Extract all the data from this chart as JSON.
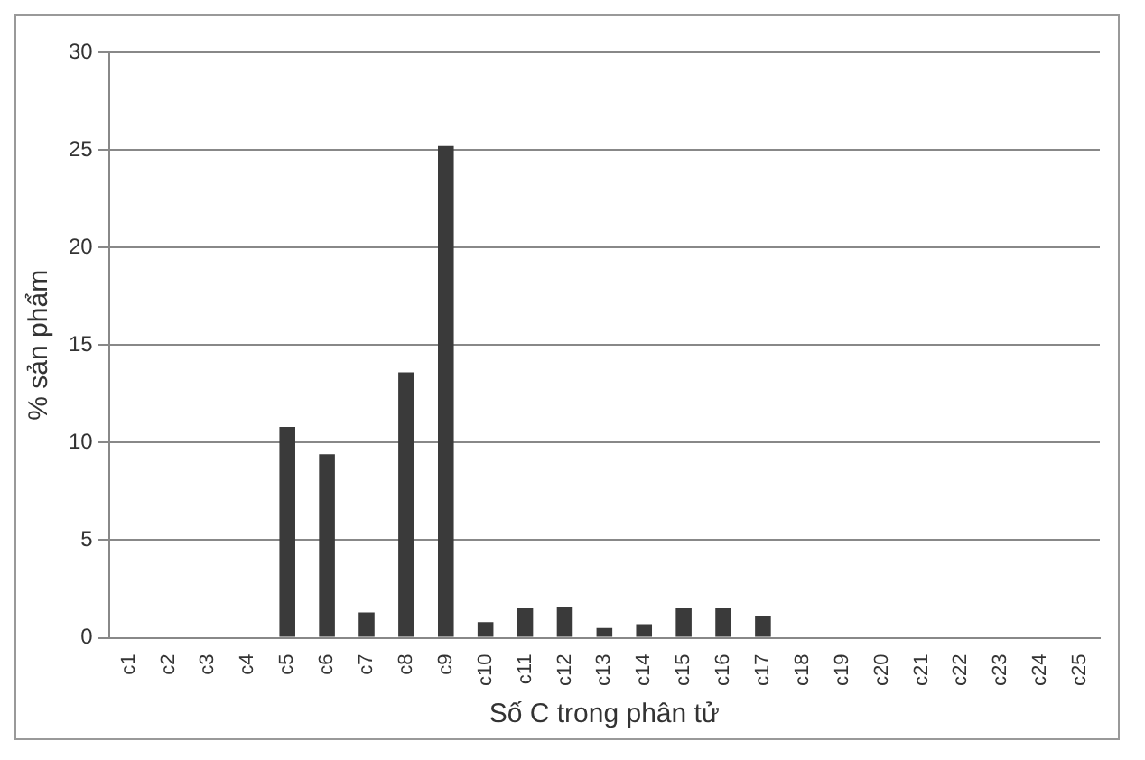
{
  "chart_data": {
    "type": "bar",
    "xlabel": "Số C trong phân tử",
    "ylabel": "% sản phẩm",
    "categories": [
      "c1",
      "c2",
      "c3",
      "c4",
      "c5",
      "c6",
      "c7",
      "c8",
      "c9",
      "c10",
      "c11",
      "c12",
      "c13",
      "c14",
      "c15",
      "c16",
      "c17",
      "c18",
      "c19",
      "c20",
      "c21",
      "c22",
      "c23",
      "c24",
      "c25"
    ],
    "values": [
      0,
      0,
      0,
      0,
      10.8,
      9.4,
      1.3,
      13.6,
      25.2,
      0.8,
      1.5,
      1.6,
      0.5,
      0.7,
      1.5,
      1.5,
      1.1,
      0,
      0,
      0,
      0,
      0,
      0,
      0,
      0
    ],
    "color": "#3a3a3a",
    "ylim": [
      0,
      30
    ],
    "yticks": [
      0,
      5,
      10,
      15,
      20,
      25,
      30
    ],
    "grid": "y",
    "legend": false
  }
}
